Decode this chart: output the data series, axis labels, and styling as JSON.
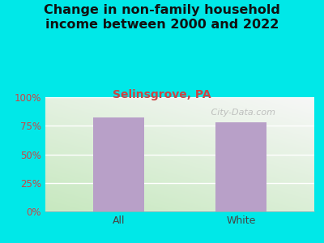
{
  "title": "Change in non-family household\nincome between 2000 and 2022",
  "subtitle": "Selinsgrove, PA",
  "categories": [
    "All",
    "White"
  ],
  "values": [
    82,
    78
  ],
  "bar_color": "#b8a0c8",
  "bar_width": 0.42,
  "ylim": [
    0,
    100
  ],
  "yticks": [
    0,
    25,
    50,
    75,
    100
  ],
  "ytick_labels": [
    "0%",
    "25%",
    "50%",
    "75%",
    "100%"
  ],
  "bg_color": "#00e8e8",
  "title_color": "#111111",
  "subtitle_color": "#cc4444",
  "ytick_color": "#cc4444",
  "xtick_color": "#444444",
  "watermark": "   City-Data.com",
  "title_fontsize": 11.5,
  "subtitle_fontsize": 10,
  "watermark_fontsize": 8
}
